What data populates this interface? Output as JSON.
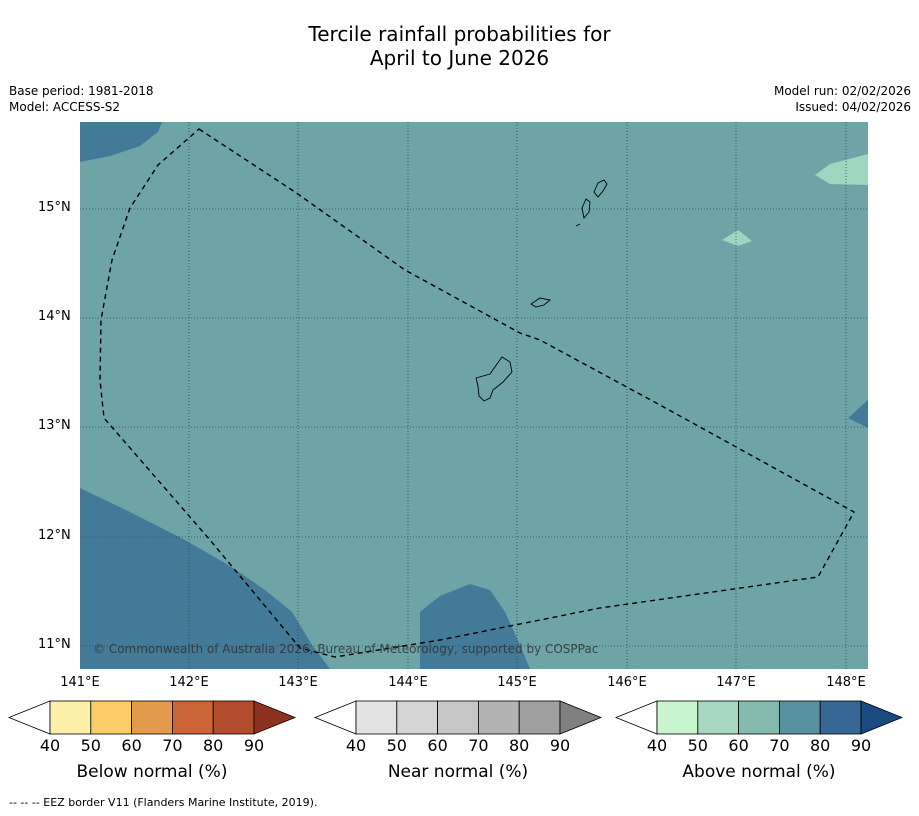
{
  "title_line1": "Tercile rainfall probabilities for",
  "title_line2": "April to June 2026",
  "base_period": "Base period: 1981-2018",
  "model": "Model: ACCESS-S2",
  "model_run": "Model run: 02/02/2026",
  "issued": "Issued: 04/02/2026",
  "copyright": "© Commonwealth of Australia 2026, Bureau of Meteorology, supported by COSPPac",
  "footnote": "--  --  -- EEZ border V11 (Flanders Marine Institute, 2019).",
  "lat_labels": [
    "15°N",
    "14°N",
    "13°N",
    "12°N",
    "11°N"
  ],
  "lon_labels": [
    "141°E",
    "142°E",
    "143°E",
    "144°E",
    "145°E",
    "146°E",
    "147°E",
    "148°E"
  ],
  "colorbars": [
    {
      "title": "Below normal (%)",
      "ticks": [
        "40",
        "50",
        "60",
        "70",
        "80",
        "90"
      ],
      "colors": [
        "#fef0a8",
        "#fdcc69",
        "#e29a4c",
        "#cc6535",
        "#b14d2c",
        "#8e3220"
      ]
    },
    {
      "title": "Near normal (%)",
      "ticks": [
        "40",
        "50",
        "60",
        "70",
        "80",
        "90"
      ],
      "colors": [
        "#e3e3e3",
        "#d5d5d5",
        "#c7c7c7",
        "#b3b3b3",
        "#9f9f9f",
        "#808080"
      ]
    },
    {
      "title": "Above normal (%)",
      "ticks": [
        "40",
        "50",
        "60",
        "70",
        "80",
        "90"
      ],
      "colors": [
        "#c8f5cd",
        "#a7d8bf",
        "#84b9ad",
        "#5990a0",
        "#376795",
        "#1b4a80"
      ]
    }
  ],
  "colors": {
    "map_base": "#6fa4a6",
    "map_dark": "#427a97",
    "map_light": "#9dd6bf"
  }
}
